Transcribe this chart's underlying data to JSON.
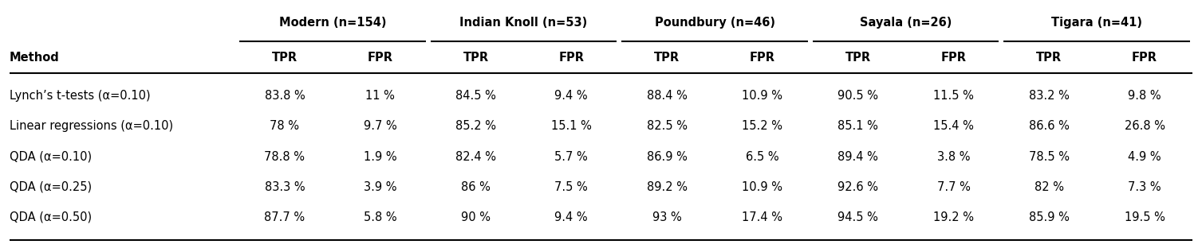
{
  "groups": [
    "Modern (n=154)",
    "Indian Knoll (n=53)",
    "Poundbury (n=46)",
    "Sayala (n=26)",
    "Tigara (n=41)"
  ],
  "row_labels": [
    "Lynch’s t-tests (α=0.10)",
    "Linear regressions (α=0.10)",
    "QDA (α=0.10)",
    "QDA (α=0.25)",
    "QDA (α=0.50)"
  ],
  "data": [
    [
      "83.8 %",
      "11 %",
      "84.5 %",
      "9.4 %",
      "88.4 %",
      "10.9 %",
      "90.5 %",
      "11.5 %",
      "83.2 %",
      "9.8 %"
    ],
    [
      "78 %",
      "9.7 %",
      "85.2 %",
      "15.1 %",
      "82.5 %",
      "15.2 %",
      "85.1 %",
      "15.4 %",
      "86.6 %",
      "26.8 %"
    ],
    [
      "78.8 %",
      "1.9 %",
      "82.4 %",
      "5.7 %",
      "86.9 %",
      "6.5 %",
      "89.4 %",
      "3.8 %",
      "78.5 %",
      "4.9 %"
    ],
    [
      "83.3 %",
      "3.9 %",
      "86 %",
      "7.5 %",
      "89.2 %",
      "10.9 %",
      "92.6 %",
      "7.7 %",
      "82 %",
      "7.3 %"
    ],
    [
      "87.7 %",
      "5.8 %",
      "90 %",
      "9.4 %",
      "93 %",
      "17.4 %",
      "94.5 %",
      "19.2 %",
      "85.9 %",
      "19.5 %"
    ]
  ],
  "method_col_label": "Method",
  "background_color": "#ffffff",
  "text_color": "#000000",
  "fontsize": 10.5,
  "bold_fontsize": 10.5
}
